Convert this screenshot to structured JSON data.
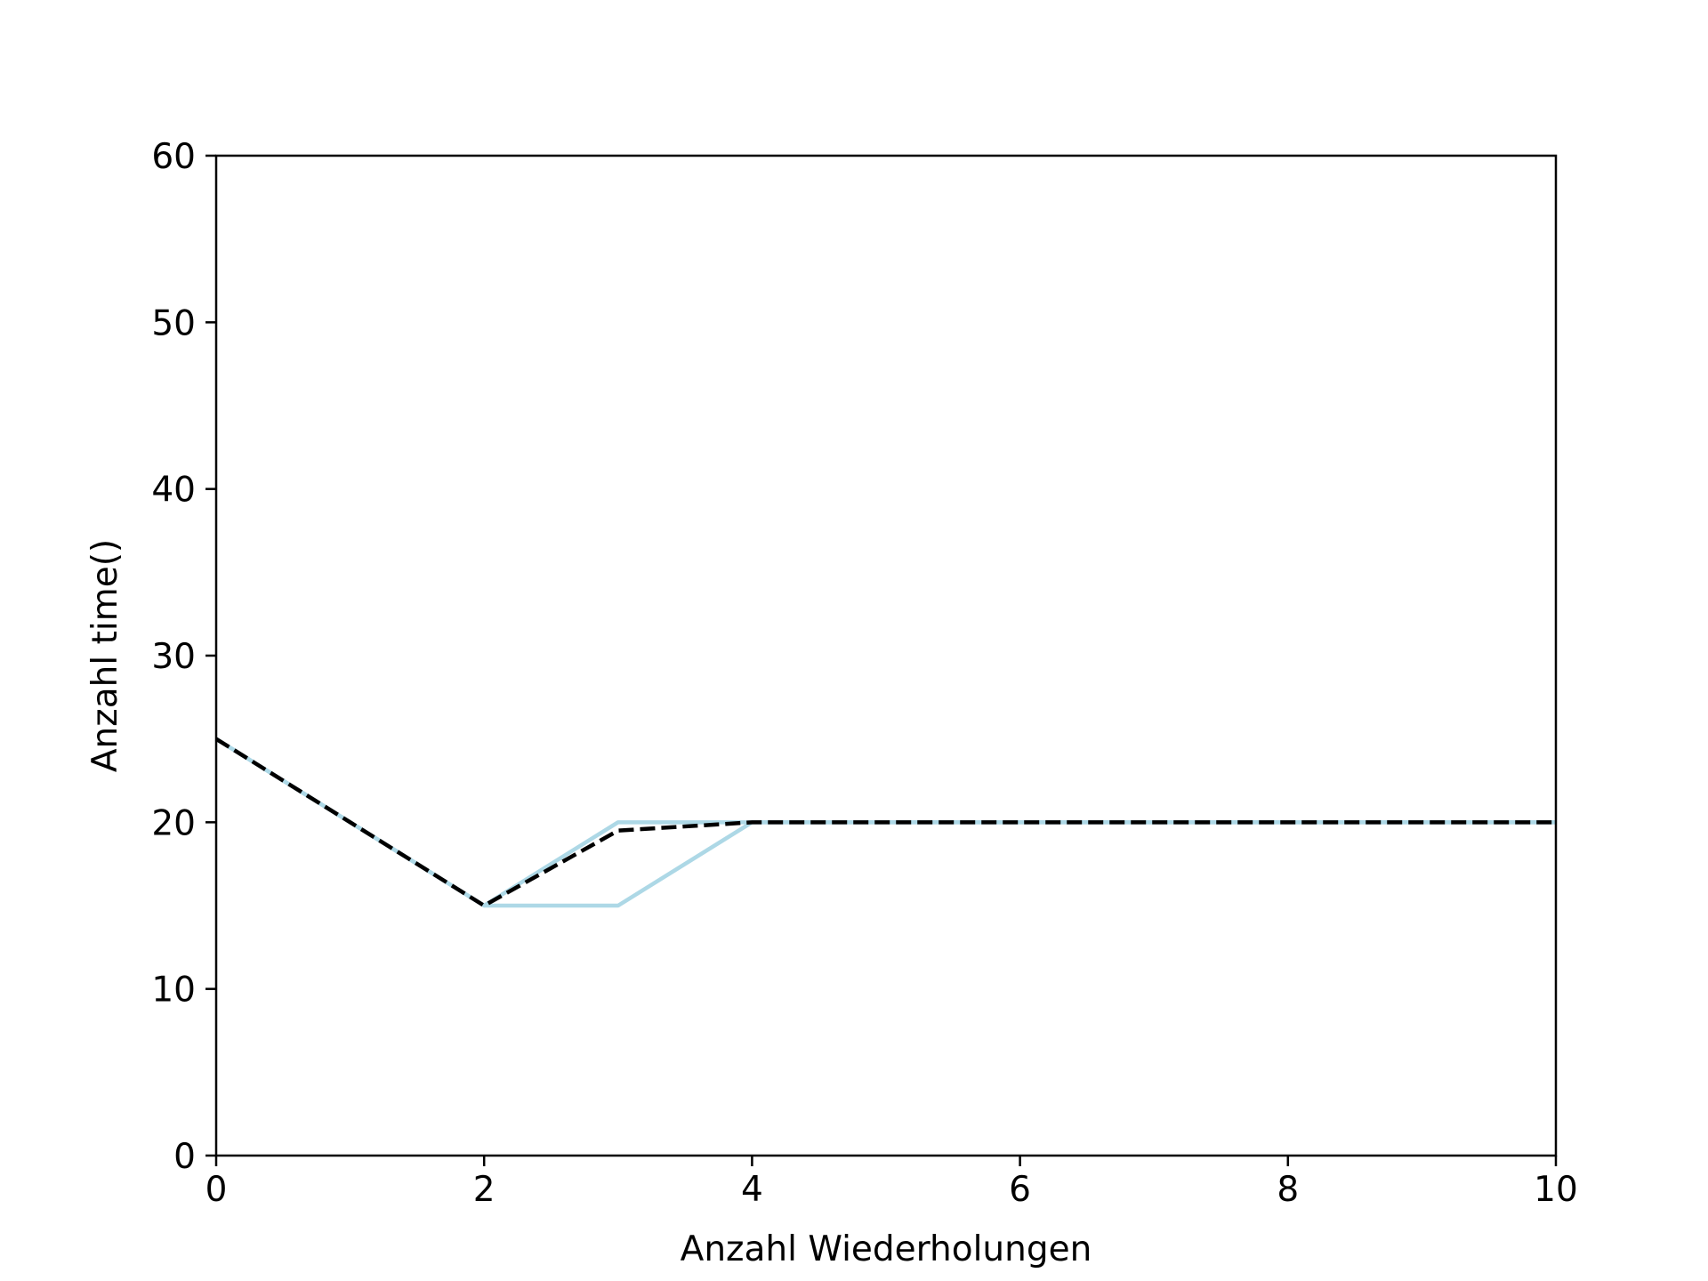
{
  "chart_data": {
    "type": "line",
    "title": "",
    "xlabel": "Anzahl Wiederholungen",
    "ylabel": "Anzahl time()",
    "xlim": [
      0,
      10
    ],
    "ylim": [
      0,
      60
    ],
    "x_ticks": [
      "0",
      "2",
      "4",
      "6",
      "8",
      "10"
    ],
    "y_ticks": [
      "0",
      "10",
      "20",
      "30",
      "40",
      "50",
      "60"
    ],
    "grid": false,
    "legend": "none",
    "series": [
      {
        "color": "#add8e6",
        "style": "solid",
        "x": [
          0,
          1,
          2,
          3,
          4,
          5,
          6,
          7,
          8,
          9,
          10
        ],
        "y": [
          25,
          20,
          15,
          20,
          20,
          20,
          20,
          20,
          20,
          20,
          20
        ]
      },
      {
        "color": "#add8e6",
        "style": "solid",
        "x": [
          0,
          1,
          2,
          3,
          4,
          5,
          6,
          7,
          8,
          9,
          10
        ],
        "y": [
          25,
          20,
          15,
          15,
          20,
          20,
          20,
          20,
          20,
          20,
          20
        ]
      },
      {
        "color": "#000000",
        "style": "dashed",
        "x": [
          0,
          1,
          2,
          3,
          4,
          5,
          6,
          7,
          8,
          9,
          10
        ],
        "y": [
          25,
          20,
          15,
          19.5,
          20,
          20,
          20,
          20,
          20,
          20,
          20
        ]
      }
    ]
  }
}
